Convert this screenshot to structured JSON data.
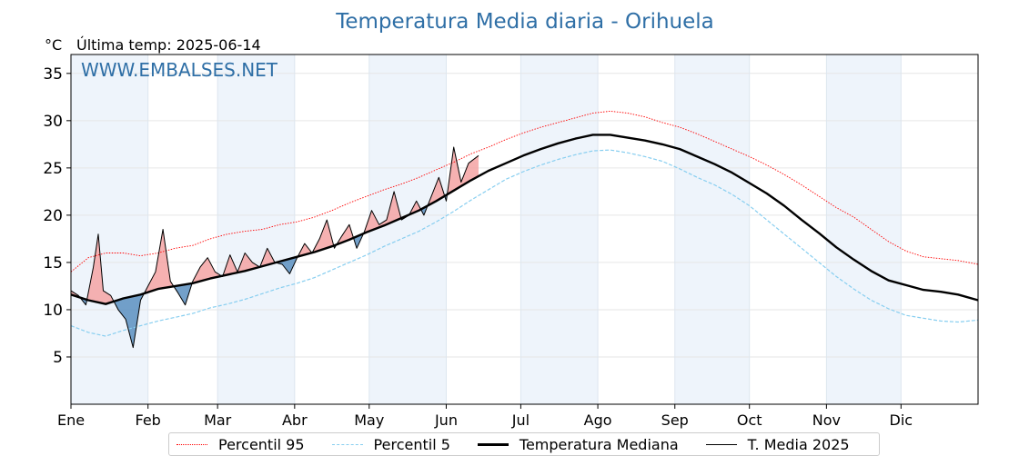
{
  "chart_data": {
    "type": "line",
    "title": "Temperatura Media diaria - Orihuela",
    "unit_label": "°C",
    "last_temp_label": "Última temp: 2025-06-14",
    "watermark": "WWW.EMBALSES.NET",
    "ylim": [
      0,
      37
    ],
    "yticks": [
      5,
      10,
      15,
      20,
      25,
      30,
      35
    ],
    "xlim": [
      1,
      366
    ],
    "month_labels": [
      "Ene",
      "Feb",
      "Mar",
      "Abr",
      "May",
      "Jun",
      "Jul",
      "Ago",
      "Sep",
      "Oct",
      "Nov",
      "Dic"
    ],
    "month_starts": [
      1,
      32,
      60,
      91,
      121,
      152,
      182,
      213,
      244,
      274,
      305,
      335
    ],
    "shaded_months": [
      0,
      2,
      4,
      6,
      8,
      10
    ],
    "legend_position": "bottom",
    "colors": {
      "p95": "#ff0000",
      "p5": "#87cef0",
      "median": "#000000",
      "year": "#000000",
      "above_fill": "#f4a3a3",
      "below_fill": "#5a8fc0",
      "title": "#2f6fa6",
      "band": "#eef4fb"
    },
    "series": [
      {
        "id": "p95",
        "name": "Percentil 95",
        "style": "dotted",
        "x": [
          1,
          8,
          15,
          22,
          29,
          36,
          43,
          50,
          57,
          64,
          71,
          78,
          85,
          92,
          99,
          106,
          113,
          120,
          127,
          134,
          141,
          148,
          155,
          162,
          169,
          176,
          183,
          190,
          197,
          204,
          211,
          218,
          225,
          232,
          239,
          246,
          253,
          260,
          267,
          274,
          281,
          288,
          295,
          302,
          309,
          316,
          323,
          330,
          337,
          344,
          351,
          358,
          366
        ],
        "y": [
          14.0,
          15.5,
          16.0,
          16.0,
          15.7,
          16.0,
          16.5,
          16.8,
          17.5,
          18.0,
          18.3,
          18.5,
          19.0,
          19.3,
          19.8,
          20.5,
          21.3,
          22.0,
          22.7,
          23.3,
          24.0,
          24.8,
          25.6,
          26.5,
          27.2,
          28.0,
          28.7,
          29.3,
          29.8,
          30.3,
          30.8,
          31.0,
          30.8,
          30.4,
          29.8,
          29.3,
          28.6,
          27.8,
          27.0,
          26.2,
          25.3,
          24.3,
          23.2,
          22.0,
          20.8,
          19.8,
          18.5,
          17.2,
          16.2,
          15.6,
          15.4,
          15.2,
          14.8
        ]
      },
      {
        "id": "p5",
        "name": "Percentil 5",
        "style": "dashed",
        "x": [
          1,
          8,
          15,
          22,
          29,
          36,
          43,
          50,
          57,
          64,
          71,
          78,
          85,
          92,
          99,
          106,
          113,
          120,
          127,
          134,
          141,
          148,
          155,
          162,
          169,
          176,
          183,
          190,
          197,
          204,
          211,
          218,
          225,
          232,
          239,
          246,
          253,
          260,
          267,
          274,
          281,
          288,
          295,
          302,
          309,
          316,
          323,
          330,
          337,
          344,
          351,
          358,
          366
        ],
        "y": [
          8.3,
          7.6,
          7.2,
          7.8,
          8.3,
          8.8,
          9.2,
          9.6,
          10.2,
          10.6,
          11.1,
          11.7,
          12.3,
          12.8,
          13.4,
          14.2,
          15.0,
          15.8,
          16.7,
          17.5,
          18.3,
          19.3,
          20.4,
          21.6,
          22.7,
          23.8,
          24.6,
          25.3,
          25.9,
          26.4,
          26.8,
          26.9,
          26.6,
          26.2,
          25.7,
          24.9,
          24.0,
          23.2,
          22.2,
          21.0,
          19.5,
          18.0,
          16.5,
          15.0,
          13.5,
          12.2,
          11.0,
          10.1,
          9.4,
          9.1,
          8.8,
          8.7,
          8.9
        ]
      },
      {
        "id": "median",
        "name": "Temperatura Mediana",
        "style": "solid-thick",
        "x": [
          1,
          8,
          15,
          22,
          29,
          36,
          43,
          50,
          57,
          64,
          71,
          78,
          85,
          92,
          99,
          106,
          113,
          120,
          127,
          134,
          141,
          148,
          155,
          162,
          169,
          176,
          183,
          190,
          197,
          204,
          211,
          218,
          225,
          232,
          239,
          246,
          253,
          260,
          267,
          274,
          281,
          288,
          295,
          302,
          309,
          316,
          323,
          330,
          337,
          344,
          351,
          358,
          366
        ],
        "y": [
          11.6,
          11.0,
          10.6,
          11.2,
          11.6,
          12.2,
          12.5,
          12.8,
          13.3,
          13.7,
          14.1,
          14.6,
          15.1,
          15.6,
          16.1,
          16.7,
          17.4,
          18.2,
          18.9,
          19.7,
          20.5,
          21.5,
          22.6,
          23.7,
          24.7,
          25.5,
          26.3,
          27.0,
          27.6,
          28.1,
          28.5,
          28.5,
          28.2,
          27.9,
          27.5,
          27.0,
          26.2,
          25.4,
          24.5,
          23.4,
          22.3,
          21.0,
          19.5,
          18.1,
          16.6,
          15.3,
          14.1,
          13.1,
          12.6,
          12.1,
          11.9,
          11.6,
          11.0
        ]
      },
      {
        "id": "year",
        "name": "T. Media 2025",
        "style": "solid-thin",
        "x": [
          1,
          4,
          7,
          10,
          12,
          14,
          17,
          20,
          23,
          26,
          29,
          32,
          35,
          38,
          41,
          44,
          47,
          50,
          53,
          56,
          59,
          62,
          65,
          68,
          71,
          74,
          77,
          80,
          83,
          86,
          89,
          92,
          95,
          98,
          101,
          104,
          107,
          110,
          113,
          116,
          119,
          122,
          125,
          128,
          131,
          134,
          137,
          140,
          143,
          146,
          149,
          152,
          155,
          158,
          161,
          165
        ],
        "y": [
          12.0,
          11.5,
          10.5,
          14.5,
          18.0,
          12.0,
          11.5,
          10.0,
          9.0,
          6.0,
          11.0,
          12.5,
          14.0,
          18.5,
          13.0,
          11.8,
          10.5,
          13.0,
          14.5,
          15.5,
          14.0,
          13.5,
          15.8,
          14.0,
          16.0,
          15.0,
          14.5,
          16.5,
          15.0,
          14.8,
          13.8,
          15.5,
          17.0,
          16.0,
          17.5,
          19.5,
          16.5,
          17.8,
          19.0,
          16.5,
          18.2,
          20.5,
          19.0,
          19.5,
          22.5,
          19.5,
          20.0,
          21.5,
          20.0,
          22.0,
          24.0,
          21.5,
          27.2,
          23.5,
          25.5,
          26.3
        ]
      }
    ]
  },
  "legend": {
    "p95": "Percentil 95",
    "p5": "Percentil 5",
    "median": "Temperatura Mediana",
    "year": "T. Media 2025"
  }
}
